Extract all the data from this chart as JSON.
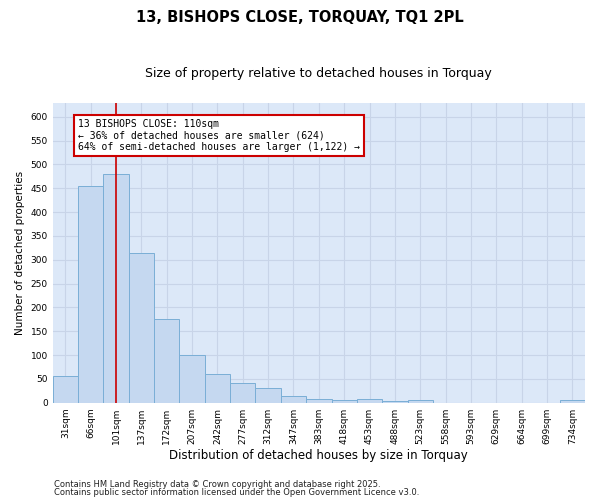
{
  "title1": "13, BISHOPS CLOSE, TORQUAY, TQ1 2PL",
  "title2": "Size of property relative to detached houses in Torquay",
  "xlabel": "Distribution of detached houses by size in Torquay",
  "ylabel": "Number of detached properties",
  "categories": [
    "31sqm",
    "66sqm",
    "101sqm",
    "137sqm",
    "172sqm",
    "207sqm",
    "242sqm",
    "277sqm",
    "312sqm",
    "347sqm",
    "383sqm",
    "418sqm",
    "453sqm",
    "488sqm",
    "523sqm",
    "558sqm",
    "593sqm",
    "629sqm",
    "664sqm",
    "699sqm",
    "734sqm"
  ],
  "values": [
    55,
    455,
    480,
    315,
    175,
    100,
    60,
    42,
    30,
    15,
    8,
    5,
    8,
    3,
    5,
    0,
    0,
    0,
    0,
    0,
    5
  ],
  "bar_color": "#c5d8f0",
  "bar_edge_color": "#7aaed6",
  "red_line_index": 2,
  "annotation_line1": "13 BISHOPS CLOSE: 110sqm",
  "annotation_line2": "← 36% of detached houses are smaller (624)",
  "annotation_line3": "64% of semi-detached houses are larger (1,122) →",
  "annotation_box_color": "#ffffff",
  "annotation_box_edge": "#cc0000",
  "red_line_color": "#cc0000",
  "grid_color": "#c8d4e8",
  "bg_color": "#dce8f8",
  "ylim": [
    0,
    630
  ],
  "yticks": [
    0,
    50,
    100,
    150,
    200,
    250,
    300,
    350,
    400,
    450,
    500,
    550,
    600
  ],
  "footer1": "Contains HM Land Registry data © Crown copyright and database right 2025.",
  "footer2": "Contains public sector information licensed under the Open Government Licence v3.0.",
  "title1_fontsize": 10.5,
  "title2_fontsize": 9,
  "ylabel_fontsize": 7.5,
  "xlabel_fontsize": 8.5,
  "tick_fontsize": 6.5,
  "annot_fontsize": 7,
  "footer_fontsize": 6
}
